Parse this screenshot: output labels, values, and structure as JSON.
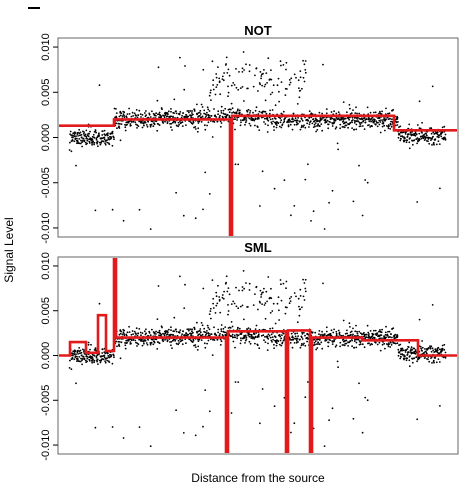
{
  "chart_data": [
    {
      "type": "scatter",
      "title": "NOT",
      "xlabel": "Distance from the source",
      "ylabel": "Signal Level",
      "ylim": [
        -0.011,
        0.011
      ],
      "xlim": [
        0,
        1
      ],
      "yticks": [
        -0.01,
        -0.005,
        0.0,
        0.005,
        0.01
      ],
      "ytick_labels": [
        "-0.010",
        "-0.005",
        "0.000",
        "0.005",
        "0.010"
      ],
      "grid": false,
      "series": [
        {
          "type": "scatter",
          "values": "about 1500 noisy observations around the red fit; scattered outliers spread between -0.011 and 0.011, densest between 0.25 and 0.8",
          "color": "#000000"
        },
        {
          "type": "step",
          "color": "#e31a1c",
          "points": [
            [
              0.0,
              0.0013
            ],
            [
              0.14,
              0.0013
            ],
            [
              0.14,
              0.002
            ],
            [
              0.43,
              0.002
            ],
            [
              0.43,
              -0.011
            ],
            [
              0.435,
              -0.011
            ],
            [
              0.435,
              0.0024
            ],
            [
              0.84,
              0.0024
            ],
            [
              0.84,
              0.0008
            ],
            [
              1.0,
              0.0008
            ]
          ]
        }
      ]
    },
    {
      "type": "scatter",
      "title": "SML",
      "xlabel": "Distance from the source",
      "ylabel": "Signal Level",
      "ylim": [
        -0.011,
        0.011
      ],
      "xlim": [
        0,
        1
      ],
      "yticks": [
        -0.01,
        -0.005,
        0.0,
        0.005,
        0.01
      ],
      "ytick_labels": [
        "-0.010",
        "-0.005",
        "0.000",
        "0.005",
        "0.010"
      ],
      "grid": false,
      "series": [
        {
          "type": "scatter",
          "values": "about 1500 noisy observations around the red fit; scattered outliers spread between -0.011 and 0.011, densest between 0.25 and 0.8",
          "color": "#000000"
        },
        {
          "type": "step",
          "color": "#e31a1c",
          "points": [
            [
              0.0,
              0.0
            ],
            [
              0.03,
              0.0
            ],
            [
              0.03,
              0.0015
            ],
            [
              0.07,
              0.0015
            ],
            [
              0.07,
              0.0003
            ],
            [
              0.1,
              0.0003
            ],
            [
              0.1,
              0.0045
            ],
            [
              0.12,
              0.0045
            ],
            [
              0.12,
              0.0005
            ],
            [
              0.14,
              0.0005
            ],
            [
              0.14,
              0.011
            ],
            [
              0.145,
              0.011
            ],
            [
              0.145,
              0.002
            ],
            [
              0.42,
              0.002
            ],
            [
              0.42,
              -0.011
            ],
            [
              0.425,
              -0.011
            ],
            [
              0.425,
              0.0027
            ],
            [
              0.57,
              0.0027
            ],
            [
              0.57,
              -0.011
            ],
            [
              0.575,
              -0.011
            ],
            [
              0.575,
              0.0028
            ],
            [
              0.63,
              0.0028
            ],
            [
              0.63,
              -0.011
            ],
            [
              0.635,
              -0.011
            ],
            [
              0.635,
              0.002
            ],
            [
              0.76,
              0.002
            ],
            [
              0.76,
              0.0017
            ],
            [
              0.9,
              0.0017
            ],
            [
              0.9,
              0.0
            ],
            [
              1.0,
              0.0
            ]
          ]
        }
      ]
    }
  ],
  "figure": {
    "ylabel": "Signal Level",
    "xlabel": "Distance from the source"
  }
}
